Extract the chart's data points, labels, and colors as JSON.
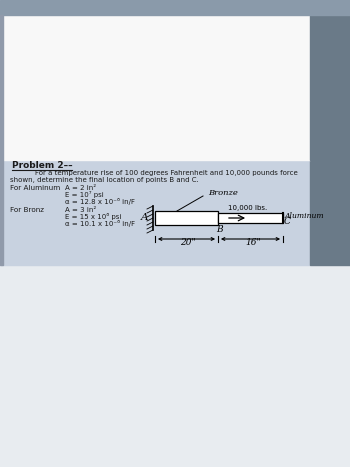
{
  "title": "Problem 2––",
  "line1": "For a temperature rise of 100 degrees Fahrenheit and 10,000 pounds force",
  "line2": "shown, determine the final location of points B and C.",
  "aluminum_label": "For Aluminum",
  "alum_p1": "A = 2 in²",
  "alum_p2": "E = 10⁷ psi",
  "alum_p3": "α = 12.8 x 10⁻⁶ in/F",
  "bronz_label": "For Bronz",
  "bronz_p1": "A = 3 in²",
  "bronz_p2": "E = 15 x 10⁶ psi",
  "bronz_p3": "α = 10.1 x 10⁻⁶ in/F",
  "diagram_bronze_label": "Bronze",
  "diagram_alum_label": "Aluminum",
  "force_label": "10,000 lbs.",
  "point_A": "A",
  "point_B": "B",
  "point_C": "C",
  "dim_bronze": "20\"",
  "dim_alum": "16\"",
  "text_color": "#1a1a1a",
  "white_bg": "#f8f8f8",
  "content_bg": "#c8d2e0",
  "photo_bg": "#8a9aaa",
  "right_dark": "#6a7a88",
  "bottom_white": "#e8ecf0"
}
